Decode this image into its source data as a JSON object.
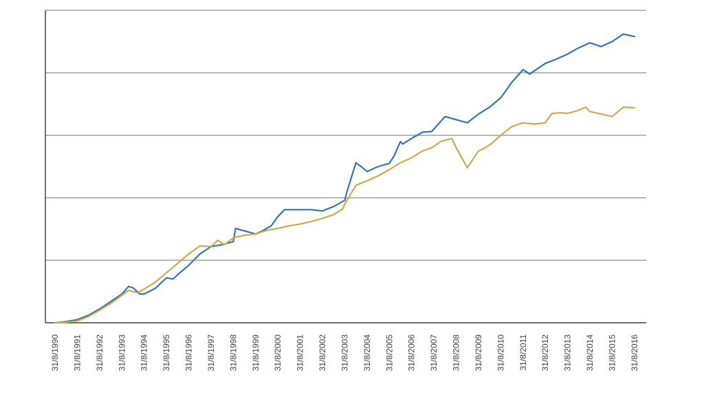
{
  "chart_data": {
    "type": "line",
    "title": "",
    "xlabel": "",
    "ylabel": "",
    "x_start_year": 1990,
    "x_end_year": 2017,
    "x_tick_labels": [
      "31/8/1990",
      "31/8/1991",
      "31/8/1992",
      "31/8/1993",
      "31/8/1994",
      "31/8/1995",
      "31/8/1996",
      "31/8/1997",
      "31/8/1998",
      "31/8/1999",
      "31/8/2000",
      "31/8/2001",
      "31/8/2002",
      "31/8/2003",
      "31/8/2004",
      "31/8/2005",
      "31/8/2006",
      "31/8/2007",
      "31/8/2008",
      "31/8/2009",
      "31/8/2010",
      "31/8/2011",
      "31/8/2012",
      "31/8/2013",
      "31/8/2014",
      "31/8/2015",
      "31/8/2016"
    ],
    "ylim": [
      0,
      5
    ],
    "gridlines": [
      1,
      2,
      3,
      4,
      5
    ],
    "grid": true,
    "y_tick_labels_visible": false,
    "legend": "none",
    "series": [
      {
        "color": "#2E75B6",
        "points": [
          [
            1990.0,
            0.0
          ],
          [
            1990.5,
            0.02
          ],
          [
            1991.0,
            0.05
          ],
          [
            1991.5,
            0.12
          ],
          [
            1992.0,
            0.22
          ],
          [
            1992.5,
            0.34
          ],
          [
            1993.0,
            0.46
          ],
          [
            1993.3,
            0.58
          ],
          [
            1993.5,
            0.56
          ],
          [
            1993.8,
            0.46
          ],
          [
            1994.0,
            0.46
          ],
          [
            1994.5,
            0.55
          ],
          [
            1995.0,
            0.72
          ],
          [
            1995.3,
            0.7
          ],
          [
            1995.6,
            0.8
          ],
          [
            1996.0,
            0.92
          ],
          [
            1996.5,
            1.1
          ],
          [
            1997.0,
            1.22
          ],
          [
            1997.5,
            1.25
          ],
          [
            1998.0,
            1.3
          ],
          [
            1998.1,
            1.51
          ],
          [
            1998.5,
            1.47
          ],
          [
            1999.0,
            1.42
          ],
          [
            1999.3,
            1.47
          ],
          [
            1999.7,
            1.55
          ],
          [
            2000.0,
            1.7
          ],
          [
            2000.3,
            1.81
          ],
          [
            2000.8,
            1.81
          ],
          [
            2001.5,
            1.81
          ],
          [
            2002.0,
            1.79
          ],
          [
            2002.5,
            1.86
          ],
          [
            2003.0,
            1.96
          ],
          [
            2003.1,
            2.1
          ],
          [
            2003.5,
            2.56
          ],
          [
            2003.8,
            2.48
          ],
          [
            2004.0,
            2.42
          ],
          [
            2004.5,
            2.5
          ],
          [
            2005.0,
            2.55
          ],
          [
            2005.2,
            2.66
          ],
          [
            2005.5,
            2.9
          ],
          [
            2005.6,
            2.86
          ],
          [
            2006.0,
            2.95
          ],
          [
            2006.5,
            3.05
          ],
          [
            2006.9,
            3.06
          ],
          [
            2007.5,
            3.3
          ],
          [
            2008.0,
            3.25
          ],
          [
            2008.5,
            3.2
          ],
          [
            2009.0,
            3.34
          ],
          [
            2009.5,
            3.45
          ],
          [
            2010.0,
            3.6
          ],
          [
            2010.5,
            3.85
          ],
          [
            2011.0,
            4.05
          ],
          [
            2011.3,
            3.98
          ],
          [
            2011.5,
            4.03
          ],
          [
            2012.0,
            4.15
          ],
          [
            2012.5,
            4.22
          ],
          [
            2013.0,
            4.3
          ],
          [
            2013.5,
            4.4
          ],
          [
            2014.0,
            4.48
          ],
          [
            2014.5,
            4.42
          ],
          [
            2015.0,
            4.5
          ],
          [
            2015.5,
            4.62
          ],
          [
            2016.0,
            4.58
          ]
        ]
      },
      {
        "color": "#D4A64A",
        "points": [
          [
            1990.0,
            0.0
          ],
          [
            1990.5,
            0.01
          ],
          [
            1991.0,
            0.03
          ],
          [
            1991.5,
            0.1
          ],
          [
            1992.0,
            0.2
          ],
          [
            1992.5,
            0.31
          ],
          [
            1993.0,
            0.44
          ],
          [
            1993.3,
            0.52
          ],
          [
            1993.7,
            0.48
          ],
          [
            1994.0,
            0.54
          ],
          [
            1994.5,
            0.65
          ],
          [
            1995.0,
            0.8
          ],
          [
            1995.5,
            0.95
          ],
          [
            1996.0,
            1.1
          ],
          [
            1996.5,
            1.23
          ],
          [
            1997.0,
            1.22
          ],
          [
            1997.3,
            1.32
          ],
          [
            1997.6,
            1.25
          ],
          [
            1998.0,
            1.36
          ],
          [
            1998.5,
            1.4
          ],
          [
            1999.0,
            1.42
          ],
          [
            1999.5,
            1.48
          ],
          [
            2000.0,
            1.51
          ],
          [
            2000.5,
            1.55
          ],
          [
            2001.0,
            1.58
          ],
          [
            2001.5,
            1.62
          ],
          [
            2002.0,
            1.67
          ],
          [
            2002.5,
            1.73
          ],
          [
            2002.9,
            1.82
          ],
          [
            2003.0,
            1.9
          ],
          [
            2003.5,
            2.2
          ],
          [
            2004.0,
            2.27
          ],
          [
            2004.3,
            2.32
          ],
          [
            2004.5,
            2.35
          ],
          [
            2005.0,
            2.45
          ],
          [
            2005.5,
            2.56
          ],
          [
            2006.0,
            2.64
          ],
          [
            2006.5,
            2.75
          ],
          [
            2006.9,
            2.8
          ],
          [
            2007.3,
            2.9
          ],
          [
            2007.8,
            2.95
          ],
          [
            2008.0,
            2.8
          ],
          [
            2008.5,
            2.48
          ],
          [
            2009.0,
            2.75
          ],
          [
            2009.3,
            2.8
          ],
          [
            2009.6,
            2.87
          ],
          [
            2010.0,
            3.0
          ],
          [
            2010.5,
            3.14
          ],
          [
            2011.0,
            3.2
          ],
          [
            2011.5,
            3.18
          ],
          [
            2012.0,
            3.2
          ],
          [
            2012.3,
            3.35
          ],
          [
            2012.7,
            3.36
          ],
          [
            2013.0,
            3.35
          ],
          [
            2013.5,
            3.4
          ],
          [
            2013.8,
            3.45
          ],
          [
            2014.0,
            3.38
          ],
          [
            2014.5,
            3.34
          ],
          [
            2015.0,
            3.3
          ],
          [
            2015.5,
            3.45
          ],
          [
            2016.0,
            3.44
          ]
        ]
      }
    ]
  }
}
